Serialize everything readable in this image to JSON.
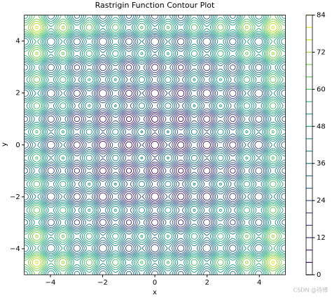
{
  "chart_data": {
    "type": "contour",
    "title": "Rastrigin Function Contour Plot",
    "x_label": "x",
    "y_label": "y",
    "xlim": [
      -5,
      5
    ],
    "ylim": [
      -5,
      5
    ],
    "xticks": [
      {
        "value": -4,
        "label": "−4"
      },
      {
        "value": -2,
        "label": "−2"
      },
      0,
      2,
      4
    ],
    "yticks": [
      {
        "value": -4,
        "label": "−4"
      },
      {
        "value": -2,
        "label": "−2"
      },
      0,
      2,
      4
    ],
    "levels": [
      0,
      4,
      8,
      12,
      16,
      20,
      24,
      28,
      32,
      36,
      40,
      44,
      48,
      52,
      56,
      60,
      64,
      68,
      72,
      76,
      80,
      84
    ],
    "colormap": "viridis",
    "colorbar": {
      "ticks": [
        0,
        12,
        24,
        36,
        48,
        60,
        72,
        84
      ]
    },
    "watermark": "CSDN @待博"
  }
}
